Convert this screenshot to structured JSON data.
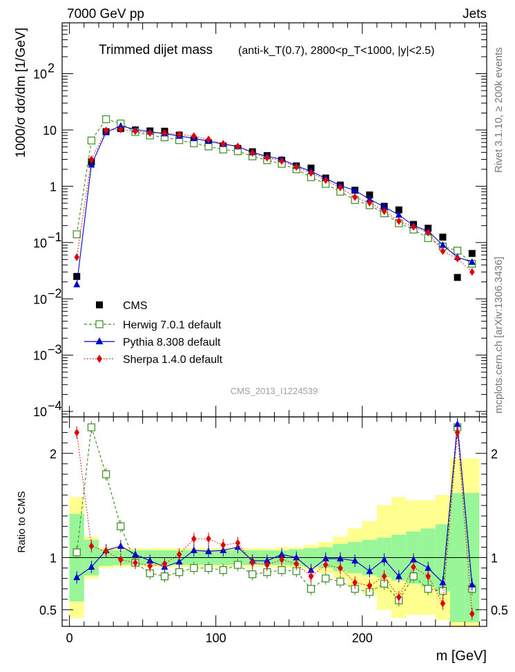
{
  "header": {
    "energy_label": "7000 GeV pp",
    "jets_label": "Jets"
  },
  "side": {
    "rivet": "Rivet 3.1.10, ≥ 200k events",
    "mcplots": "mcplots.cern.ch [arXiv:1306.3436]"
  },
  "watermark": "CMS_2013_I1224539",
  "colors": {
    "cms": "#000000",
    "herwig": "#3a8a1e",
    "pythia": "#0000cc",
    "sherpa": "#e00000",
    "band_inner": "#98f598",
    "band_outer": "#ffff90"
  },
  "chart_data": [
    {
      "type": "scatter",
      "title": "Trimmed dijet mass",
      "title_detail": "(anti-k_T(0.7), 2800<p_T<1000, |y|<2.5)",
      "ylabel": "1000/σ dσ/dm [1/GeV]",
      "yscale": "log",
      "ylim": [
        8e-05,
        800
      ],
      "xlim": [
        -5,
        285
      ],
      "yticks": [
        {
          "v": 100,
          "b": "10",
          "e": "2"
        },
        {
          "v": 10,
          "b": "10",
          "e": ""
        },
        {
          "v": 1,
          "b": "1",
          "e": ""
        },
        {
          "v": 0.1,
          "b": "10",
          "e": "−1"
        },
        {
          "v": 0.01,
          "b": "10",
          "e": "−2"
        },
        {
          "v": 0.001,
          "b": "10",
          "e": "−3"
        },
        {
          "v": 0.0001,
          "b": "10",
          "e": "−4"
        }
      ],
      "x": [
        5,
        15,
        25,
        35,
        45,
        55,
        65,
        75,
        85,
        95,
        105,
        115,
        125,
        135,
        145,
        155,
        165,
        175,
        185,
        195,
        205,
        215,
        225,
        235,
        245,
        255,
        265,
        275
      ],
      "series": [
        {
          "name": "CMS",
          "key": "cms",
          "marker": "square",
          "values": [
            0.025,
            2.7,
            9.3,
            10.6,
            10.0,
            9.6,
            9.5,
            8.1,
            6.6,
            5.9,
            5.2,
            4.7,
            4.1,
            3.5,
            2.9,
            2.3,
            2.1,
            1.4,
            1.05,
            0.85,
            0.7,
            0.44,
            0.38,
            0.21,
            0.18,
            0.125,
            0.024,
            0.064
          ]
        },
        {
          "name": "Herwig 7.0.1 default",
          "key": "herwig",
          "marker": "open-square",
          "values": [
            0.14,
            6.5,
            15.5,
            13.0,
            9.2,
            8.0,
            7.4,
            6.6,
            5.8,
            5.1,
            4.5,
            4.2,
            3.4,
            2.9,
            2.5,
            2.0,
            1.45,
            1.1,
            0.8,
            0.57,
            0.46,
            0.33,
            0.22,
            0.17,
            0.12,
            0.085,
            0.072,
            0.042
          ]
        },
        {
          "name": "Pythia 8.308 default",
          "key": "pythia",
          "marker": "triangle",
          "values": [
            0.018,
            2.4,
            9.1,
            11.8,
            10.2,
            9.3,
            8.6,
            7.8,
            7.1,
            6.3,
            5.6,
            5.1,
            4.0,
            3.4,
            3.0,
            2.3,
            1.85,
            1.38,
            1.03,
            0.84,
            0.59,
            0.43,
            0.31,
            0.2,
            0.16,
            0.09,
            0.055,
            0.045
          ]
        },
        {
          "name": "Sherpa 1.4.0 default",
          "key": "sherpa",
          "marker": "diamond",
          "values": [
            0.055,
            3.0,
            9.8,
            10.2,
            9.5,
            8.8,
            8.9,
            8.3,
            7.8,
            6.8,
            5.7,
            5.1,
            3.9,
            3.2,
            2.8,
            2.2,
            1.72,
            1.28,
            0.95,
            0.64,
            0.51,
            0.36,
            0.24,
            0.19,
            0.15,
            0.07,
            0.052,
            0.03
          ]
        }
      ]
    },
    {
      "type": "line",
      "xlabel": "m [GeV]",
      "ylabel": "Ratio to CMS",
      "ylim": [
        0.34,
        2.35
      ],
      "xlim": [
        -5,
        285
      ],
      "xticks": [
        0,
        100,
        200
      ],
      "yticks": [
        0.5,
        1,
        2
      ],
      "x": [
        5,
        15,
        25,
        35,
        45,
        55,
        65,
        75,
        85,
        95,
        105,
        115,
        125,
        135,
        145,
        155,
        165,
        175,
        185,
        195,
        205,
        215,
        225,
        235,
        245,
        255,
        265,
        275
      ],
      "band_inner": [
        0.42,
        0.17,
        0.08,
        0.07,
        0.07,
        0.07,
        0.07,
        0.07,
        0.07,
        0.07,
        0.07,
        0.07,
        0.07,
        0.07,
        0.07,
        0.08,
        0.09,
        0.1,
        0.13,
        0.15,
        0.17,
        0.19,
        0.22,
        0.25,
        0.28,
        0.32,
        0.62,
        0.62
      ],
      "band_outer": [
        0.58,
        0.2,
        0.1,
        0.09,
        0.09,
        0.09,
        0.09,
        0.09,
        0.09,
        0.09,
        0.09,
        0.09,
        0.09,
        0.09,
        0.1,
        0.1,
        0.12,
        0.15,
        0.2,
        0.28,
        0.35,
        0.5,
        0.58,
        0.55,
        0.55,
        0.6,
        0.95,
        0.95
      ],
      "series": [
        {
          "name": "Herwig 7.0.1 default",
          "key": "herwig",
          "marker": "open-square",
          "values": [
            1.05,
            2.25,
            1.8,
            1.3,
            0.95,
            0.85,
            0.82,
            0.86,
            0.9,
            0.9,
            0.88,
            0.93,
            0.84,
            0.86,
            0.88,
            0.87,
            0.7,
            0.8,
            0.77,
            0.7,
            0.67,
            0.75,
            0.59,
            0.82,
            0.7,
            0.68,
            2.25,
            0.7
          ]
        },
        {
          "name": "Pythia 8.308 default",
          "key": "pythia",
          "marker": "triangle",
          "values": [
            0.81,
            0.91,
            1.07,
            1.11,
            1.03,
            0.97,
            0.91,
            0.96,
            1.07,
            1.06,
            1.07,
            1.1,
            0.97,
            0.97,
            1.03,
            1.0,
            0.88,
            0.99,
            0.99,
            0.97,
            0.87,
            0.98,
            0.82,
            0.98,
            0.9,
            0.76,
            2.28,
            0.74
          ]
        },
        {
          "name": "Sherpa 1.4.0 default",
          "key": "sherpa",
          "marker": "diamond",
          "values": [
            2.2,
            1.11,
            1.06,
            0.98,
            0.95,
            0.92,
            0.94,
            1.03,
            1.18,
            1.18,
            1.12,
            1.14,
            0.95,
            0.93,
            0.98,
            0.94,
            0.82,
            0.93,
            0.9,
            0.76,
            0.73,
            0.82,
            0.62,
            0.91,
            0.82,
            0.56,
            2.2,
            0.46
          ]
        }
      ]
    }
  ]
}
